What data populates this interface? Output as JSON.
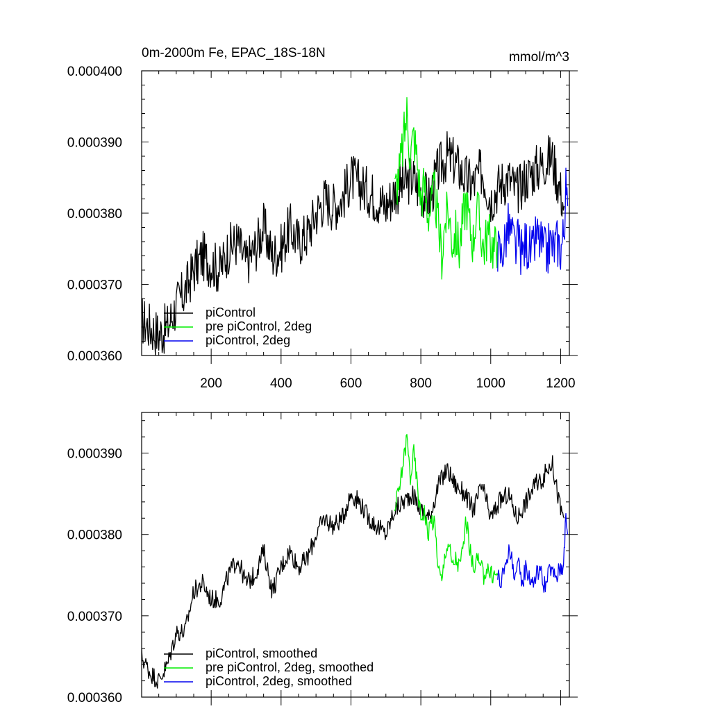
{
  "chart_data": [
    {
      "type": "line",
      "title": "0m-2000m Fe, EPAC_18S-18N",
      "units": "mmol/m^3",
      "xlim": [
        1,
        1225
      ],
      "ylim": [
        0.00036,
        0.0004
      ],
      "x_ticks": [
        200,
        400,
        600,
        800,
        1000,
        1200
      ],
      "x_tick_labels": [
        "200",
        "400",
        "600",
        "800",
        "1000",
        "1200"
      ],
      "y_ticks": [
        0.00036,
        0.00037,
        0.00038,
        0.00039,
        0.0004
      ],
      "y_tick_labels": [
        "0.000360",
        "0.000370",
        "0.000380",
        "0.000390",
        "0.000400"
      ],
      "grid": false,
      "legend_position": "lower-left",
      "series": [
        {
          "name": "piControl",
          "color": "#000000",
          "x": [
            1,
            25,
            50,
            75,
            100,
            125,
            150,
            175,
            200,
            225,
            250,
            275,
            300,
            325,
            350,
            375,
            400,
            425,
            450,
            475,
            500,
            525,
            550,
            575,
            600,
            625,
            650,
            675,
            700,
            725,
            750,
            775,
            800,
            825,
            850,
            875,
            900,
            925,
            950,
            975,
            1000,
            1025,
            1050,
            1075,
            1100,
            1125,
            1150,
            1175,
            1200,
            1210
          ],
          "values": [
            0.000365,
            0.000364,
            0.000363,
            0.000364,
            0.000367,
            0.000369,
            0.000372,
            0.000374,
            0.000373,
            0.000372,
            0.000375,
            0.000376,
            0.000373,
            0.000375,
            0.000378,
            0.000374,
            0.000375,
            0.000378,
            0.000376,
            0.000377,
            0.00038,
            0.000382,
            0.000381,
            0.000382,
            0.000385,
            0.000384,
            0.000383,
            0.000382,
            0.000381,
            0.000383,
            0.000384,
            0.000385,
            0.000383,
            0.000382,
            0.000386,
            0.000388,
            0.000387,
            0.000385,
            0.000384,
            0.000386,
            0.000382,
            0.000384,
            0.000385,
            0.000383,
            0.000385,
            0.000386,
            0.000387,
            0.000388,
            0.000383,
            0.000381
          ]
        },
        {
          "name": "pre piControl, 2deg",
          "color": "#00ee00",
          "x": [
            725,
            740,
            750,
            760,
            770,
            780,
            790,
            800,
            810,
            820,
            830,
            840,
            850,
            860,
            870,
            880,
            890,
            900,
            910,
            920,
            930,
            940,
            950,
            960,
            970,
            980,
            990,
            1000,
            1010,
            1020
          ],
          "values": [
            0.000383,
            0.000386,
            0.00039,
            0.000394,
            0.000388,
            0.000391,
            0.000387,
            0.000382,
            0.000384,
            0.00038,
            0.000381,
            0.000383,
            0.000378,
            0.000374,
            0.000379,
            0.00038,
            0.000376,
            0.000377,
            0.000375,
            0.000379,
            0.000382,
            0.000378,
            0.000376,
            0.000381,
            0.000378,
            0.000375,
            0.000377,
            0.000376,
            0.000375,
            0.000376
          ]
        },
        {
          "name": "piControl, 2deg",
          "color": "#0000ee",
          "x": [
            1020,
            1030,
            1040,
            1050,
            1060,
            1070,
            1080,
            1090,
            1100,
            1110,
            1120,
            1130,
            1140,
            1150,
            1160,
            1170,
            1180,
            1190,
            1200,
            1205,
            1210,
            1215,
            1220
          ],
          "values": [
            0.000375,
            0.000374,
            0.000376,
            0.000378,
            0.000377,
            0.000375,
            0.000376,
            0.000374,
            0.000376,
            0.000375,
            0.000374,
            0.000377,
            0.000376,
            0.000375,
            0.000374,
            0.000376,
            0.000375,
            0.000376,
            0.000375,
            0.000376,
            0.000378,
            0.000383,
            0.000381
          ]
        }
      ]
    },
    {
      "type": "line",
      "xlim": [
        1,
        1225
      ],
      "ylim": [
        0.00036,
        0.000395
      ],
      "x_ticks": [
        200,
        400,
        600,
        800,
        1000,
        1200
      ],
      "y_ticks": [
        0.00036,
        0.00037,
        0.00038,
        0.00039
      ],
      "y_tick_labels": [
        "0.000360",
        "0.000370",
        "0.000380",
        "0.000390"
      ],
      "grid": false,
      "legend_position": "lower-left",
      "series": [
        {
          "name": "piControl, smoothed",
          "color": "#000000",
          "x": [
            1,
            25,
            50,
            75,
            100,
            125,
            150,
            175,
            200,
            225,
            250,
            275,
            300,
            325,
            350,
            375,
            400,
            425,
            450,
            475,
            500,
            525,
            550,
            575,
            600,
            625,
            650,
            675,
            700,
            725,
            750,
            775,
            800,
            825,
            850,
            875,
            900,
            925,
            950,
            975,
            1000,
            1025,
            1050,
            1075,
            1100,
            1125,
            1150,
            1175,
            1200,
            1210
          ],
          "values": [
            0.000365,
            0.000363,
            0.000362,
            0.000364,
            0.000368,
            0.000368,
            0.000373,
            0.000374,
            0.000372,
            0.000372,
            0.000375,
            0.000377,
            0.000374,
            0.000375,
            0.000378,
            0.000373,
            0.000376,
            0.000378,
            0.000376,
            0.000377,
            0.00038,
            0.000382,
            0.000381,
            0.000382,
            0.000385,
            0.000384,
            0.000382,
            0.000381,
            0.00038,
            0.000383,
            0.000384,
            0.000385,
            0.000383,
            0.000382,
            0.000386,
            0.000388,
            0.000386,
            0.000385,
            0.000383,
            0.000386,
            0.000382,
            0.000384,
            0.000385,
            0.000382,
            0.000384,
            0.000386,
            0.000387,
            0.000389,
            0.000383,
            0.000382
          ]
        },
        {
          "name": "pre piControl, 2deg, smoothed",
          "color": "#00ee00",
          "x": [
            725,
            740,
            750,
            760,
            770,
            780,
            790,
            800,
            810,
            820,
            830,
            840,
            850,
            860,
            870,
            880,
            890,
            900,
            910,
            920,
            930,
            940,
            950,
            960,
            970,
            980,
            990,
            1000,
            1010,
            1020
          ],
          "values": [
            0.000383,
            0.000386,
            0.000389,
            0.000392,
            0.000387,
            0.00039,
            0.000386,
            0.000382,
            0.000383,
            0.00038,
            0.000382,
            0.000381,
            0.000376,
            0.000374,
            0.000378,
            0.000379,
            0.000376,
            0.000377,
            0.000376,
            0.000378,
            0.000382,
            0.000378,
            0.000376,
            0.000377,
            0.000376,
            0.000375,
            0.000376,
            0.000375,
            0.000375,
            0.000375
          ]
        },
        {
          "name": "piControl, 2deg, smoothed",
          "color": "#0000ee",
          "x": [
            1020,
            1030,
            1040,
            1050,
            1060,
            1070,
            1080,
            1090,
            1100,
            1110,
            1120,
            1130,
            1140,
            1150,
            1160,
            1170,
            1180,
            1190,
            1200,
            1205,
            1210,
            1215,
            1220
          ],
          "values": [
            0.000375,
            0.000374,
            0.000376,
            0.000378,
            0.000377,
            0.000375,
            0.000376,
            0.000374,
            0.000376,
            0.000375,
            0.000374,
            0.000375,
            0.000376,
            0.000374,
            0.000374,
            0.000376,
            0.000375,
            0.000375,
            0.000376,
            0.000376,
            0.000378,
            0.000382,
            0.00038
          ]
        }
      ]
    }
  ]
}
